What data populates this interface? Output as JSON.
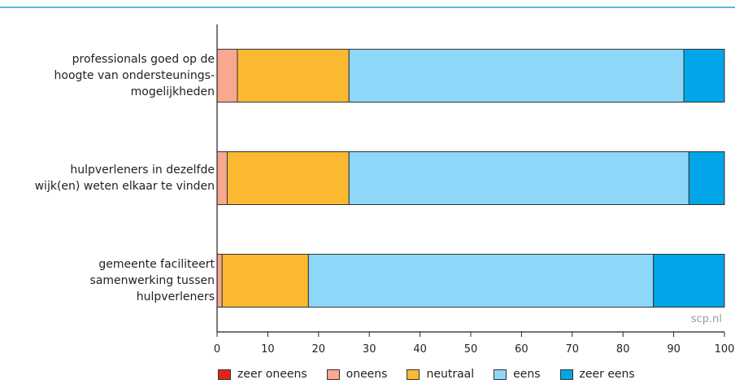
{
  "chart_data": {
    "type": "bar",
    "orientation": "horizontal",
    "stacked": true,
    "categories": [
      "professionals  goed op de\nhoogte van ondersteunings-\nmogelijkheden",
      "hulpverleners in dezelfde\nwijk(en) weten elkaar te vinden",
      "gemeente faciliteert\nsamenwerking tussen\nhulpverleners"
    ],
    "series": [
      {
        "name": "zeer oneens",
        "color": "#e2231a",
        "values": [
          0,
          0,
          0
        ]
      },
      {
        "name": "oneens",
        "color": "#f6a891",
        "values": [
          4,
          2,
          1
        ]
      },
      {
        "name": "neutraal",
        "color": "#fbb931",
        "values": [
          22,
          24,
          17
        ]
      },
      {
        "name": "eens",
        "color": "#8dd8f8",
        "values": [
          66,
          67,
          68
        ]
      },
      {
        "name": "zeer eens",
        "color": "#00a6e8",
        "values": [
          8,
          7,
          14
        ]
      }
    ],
    "xlim": [
      0,
      100
    ],
    "xticks": [
      "0",
      "10",
      "20",
      "30",
      "40",
      "50",
      "60",
      "70",
      "80",
      "90",
      "100"
    ],
    "grid": false,
    "legend_position": "bottom"
  },
  "source": "scp.nl"
}
